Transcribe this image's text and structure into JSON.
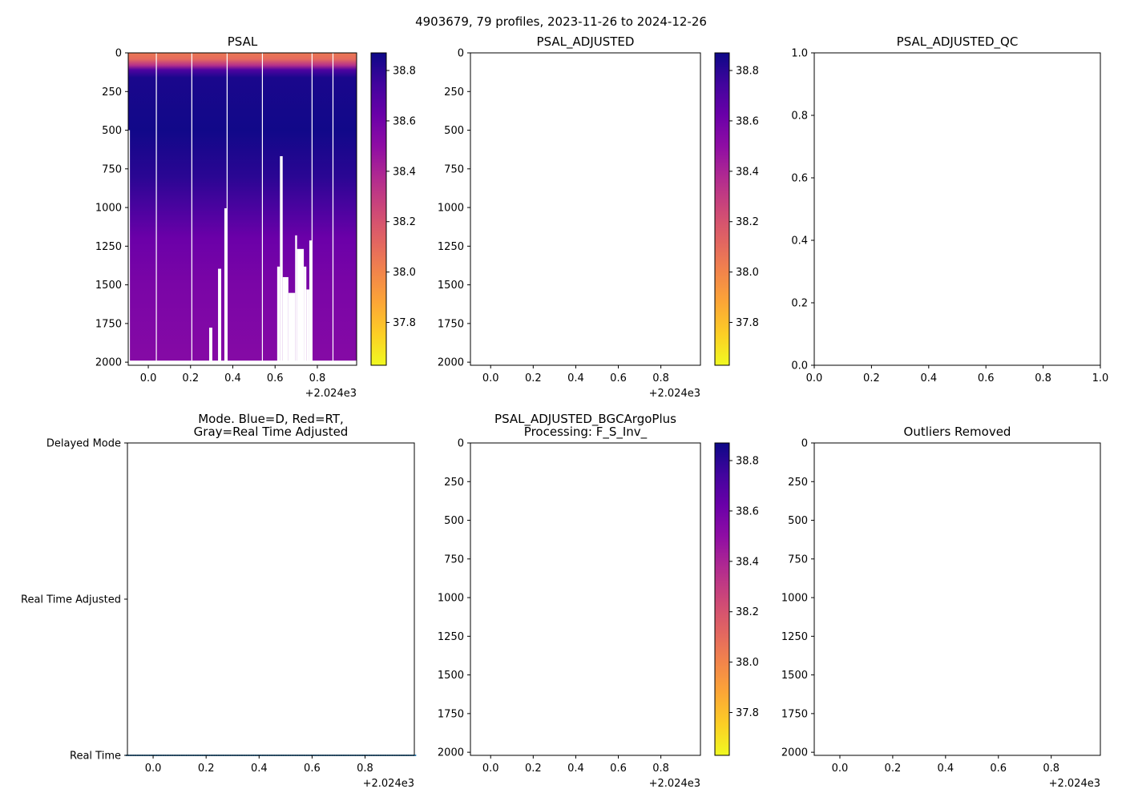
{
  "figure_title": "4903679, 79 profiles, 2023-11-26 to 2024-12-26",
  "x_offset_label": "+2.024e3",
  "colors": {
    "rt_dots": "#1f77b4",
    "axis": "#000000"
  },
  "chart_data": [
    {
      "id": "psal",
      "type": "heatmap",
      "title": [
        "PSAL"
      ],
      "xlim": [
        -0.095,
        0.986
      ],
      "xticks": [
        0.0,
        0.2,
        0.4,
        0.6,
        0.8
      ],
      "xtick_labels": [
        "0.0",
        "0.2",
        "0.4",
        "0.6",
        "0.8"
      ],
      "ylim": [
        2020,
        0
      ],
      "yticks": [
        0,
        250,
        500,
        750,
        1000,
        1250,
        1500,
        1750,
        2000
      ],
      "ytick_labels": [
        "0",
        "250",
        "500",
        "750",
        "1000",
        "1250",
        "1500",
        "1750",
        "2000"
      ],
      "approx_mean_profile": [
        [
          0,
          38.05
        ],
        [
          40,
          38.1
        ],
        [
          80,
          38.35
        ],
        [
          110,
          38.7
        ],
        [
          160,
          38.84
        ],
        [
          500,
          38.86
        ],
        [
          800,
          38.8
        ],
        [
          1000,
          38.72
        ],
        [
          1200,
          38.62
        ],
        [
          1500,
          38.57
        ],
        [
          2000,
          38.53
        ]
      ],
      "profile_bottom_depth": 1990,
      "missing_profiles": [
        0.038,
        0.206,
        0.373,
        0.54,
        0.775,
        0.874
      ],
      "data_gaps": [
        {
          "x0": -0.095,
          "x1": -0.087,
          "top": 500
        },
        {
          "x0": 0.288,
          "x1": 0.303,
          "top": 1777
        },
        {
          "x0": 0.33,
          "x1": 0.345,
          "top": 1396
        },
        {
          "x0": 0.36,
          "x1": 0.373,
          "top": 1005
        },
        {
          "x0": 0.61,
          "x1": 0.623,
          "top": 1382
        },
        {
          "x0": 0.623,
          "x1": 0.636,
          "top": 668
        },
        {
          "x0": 0.636,
          "x1": 0.663,
          "top": 1450
        },
        {
          "x0": 0.663,
          "x1": 0.695,
          "top": 1552
        },
        {
          "x0": 0.695,
          "x1": 0.704,
          "top": 1180
        },
        {
          "x0": 0.704,
          "x1": 0.736,
          "top": 1268
        },
        {
          "x0": 0.736,
          "x1": 0.748,
          "top": 1382
        },
        {
          "x0": 0.748,
          "x1": 0.762,
          "top": 1530
        },
        {
          "x0": 0.762,
          "x1": 0.775,
          "top": 1213
        }
      ],
      "colorbar": {
        "range": [
          37.63,
          38.87
        ],
        "ticks": [
          37.8,
          38.0,
          38.2,
          38.4,
          38.6,
          38.8
        ],
        "tick_labels": [
          "37.8",
          "38.0",
          "38.2",
          "38.4",
          "38.6",
          "38.8"
        ],
        "colormap": "plasma_r"
      }
    },
    {
      "id": "psal_adjusted",
      "type": "heatmap",
      "title": [
        "PSAL_ADJUSTED"
      ],
      "xlim": [
        -0.095,
        0.986
      ],
      "xticks": [
        0.0,
        0.2,
        0.4,
        0.6,
        0.8
      ],
      "xtick_labels": [
        "0.0",
        "0.2",
        "0.4",
        "0.6",
        "0.8"
      ],
      "ylim": [
        2020,
        0
      ],
      "yticks": [
        0,
        250,
        500,
        750,
        1000,
        1250,
        1500,
        1750,
        2000
      ],
      "ytick_labels": [
        "0",
        "250",
        "500",
        "750",
        "1000",
        "1250",
        "1500",
        "1750",
        "2000"
      ],
      "colorbar": {
        "range": [
          37.63,
          38.87
        ],
        "ticks": [
          37.8,
          38.0,
          38.2,
          38.4,
          38.6,
          38.8
        ],
        "tick_labels": [
          "37.8",
          "38.0",
          "38.2",
          "38.4",
          "38.6",
          "38.8"
        ],
        "colormap": "plasma_r"
      }
    },
    {
      "id": "psal_adjusted_qc",
      "type": "scatter",
      "title": [
        "PSAL_ADJUSTED_QC"
      ],
      "xlim": [
        0,
        1
      ],
      "ylim": [
        0,
        1
      ],
      "no_offset": true,
      "xticks": [
        0,
        0.2,
        0.4,
        0.6,
        0.8,
        1.0
      ],
      "xtick_labels": [
        "0.0",
        "0.2",
        "0.4",
        "0.6",
        "0.8",
        "1.0"
      ],
      "yticks": [
        0,
        0.2,
        0.4,
        0.6,
        0.8,
        1.0
      ],
      "ytick_labels": [
        "0.0",
        "0.2",
        "0.4",
        "0.6",
        "0.8",
        "1.0"
      ]
    },
    {
      "id": "mode",
      "type": "scatter",
      "title": [
        "Mode. Blue=D, Red=RT,",
        "Gray=Real Time Adjusted"
      ],
      "xlim": [
        -0.097,
        0.986
      ],
      "xticks": [
        0.0,
        0.2,
        0.4,
        0.6,
        0.8
      ],
      "xtick_labels": [
        "0.0",
        "0.2",
        "0.4",
        "0.6",
        "0.8"
      ],
      "ylim": [
        0,
        2
      ],
      "yticks": [
        0,
        1,
        2
      ],
      "ytick_labels": [
        "Real Time",
        "Real Time Adjusted",
        "Delayed Mode"
      ],
      "points": {
        "y": 0,
        "x_start": -0.097,
        "x_end": 0.986,
        "count": 79
      }
    },
    {
      "id": "bgcargoplus",
      "type": "heatmap",
      "title": [
        "PSAL_ADJUSTED_BGCArgoPlus",
        "Processing: F_S_Inv_"
      ],
      "xlim": [
        -0.095,
        0.986
      ],
      "xticks": [
        0.0,
        0.2,
        0.4,
        0.6,
        0.8
      ],
      "xtick_labels": [
        "0.0",
        "0.2",
        "0.4",
        "0.6",
        "0.8"
      ],
      "ylim": [
        2020,
        0
      ],
      "yticks": [
        0,
        250,
        500,
        750,
        1000,
        1250,
        1500,
        1750,
        2000
      ],
      "ytick_labels": [
        "0",
        "250",
        "500",
        "750",
        "1000",
        "1250",
        "1500",
        "1750",
        "2000"
      ],
      "colorbar": {
        "range": [
          37.63,
          38.87
        ],
        "ticks": [
          37.8,
          38.0,
          38.2,
          38.4,
          38.6,
          38.8
        ],
        "tick_labels": [
          "37.8",
          "38.0",
          "38.2",
          "38.4",
          "38.6",
          "38.8"
        ],
        "colormap": "plasma_r"
      }
    },
    {
      "id": "outliers",
      "type": "heatmap",
      "title": [
        "Outliers Removed"
      ],
      "xlim": [
        -0.097,
        0.986
      ],
      "xticks": [
        0.0,
        0.2,
        0.4,
        0.6,
        0.8
      ],
      "xtick_labels": [
        "0.0",
        "0.2",
        "0.4",
        "0.6",
        "0.8"
      ],
      "ylim": [
        2020,
        0
      ],
      "yticks": [
        0,
        250,
        500,
        750,
        1000,
        1250,
        1500,
        1750,
        2000
      ],
      "ytick_labels": [
        "0",
        "250",
        "500",
        "750",
        "1000",
        "1250",
        "1500",
        "1750",
        "2000"
      ]
    }
  ]
}
